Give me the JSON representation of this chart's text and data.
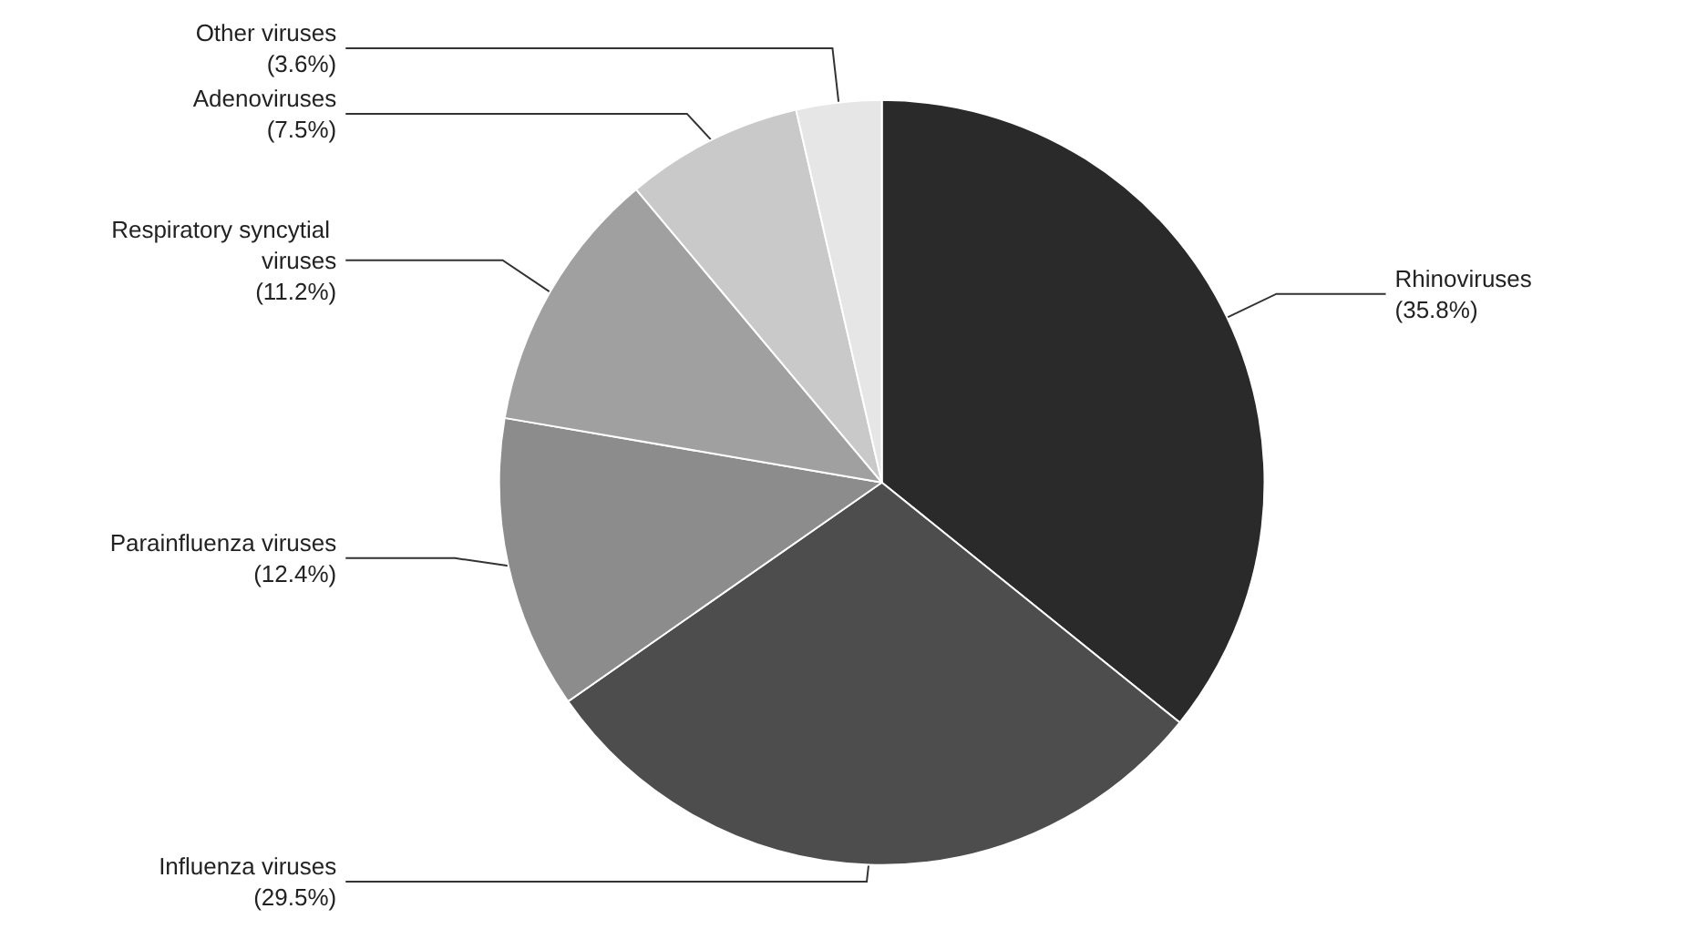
{
  "chart_data": {
    "type": "pie",
    "categories": [
      "Rhinoviruses",
      "Influenza viruses",
      "Parainfluenza viruses",
      "Respiratory syncytial viruses",
      "Adenoviruses",
      "Other viruses"
    ],
    "values": [
      35.8,
      29.5,
      12.4,
      11.2,
      7.5,
      3.6
    ],
    "value_labels": [
      "(35.8%)",
      "(29.5%)",
      "(12.4%)",
      "(11.2%)",
      "(7.5%)",
      "(3.6%)"
    ],
    "colors": [
      "#2a2a2a",
      "#4d4d4d",
      "#8c8c8c",
      "#a0a0a0",
      "#c9c9c9",
      "#e6e6e6"
    ],
    "legend": false
  }
}
